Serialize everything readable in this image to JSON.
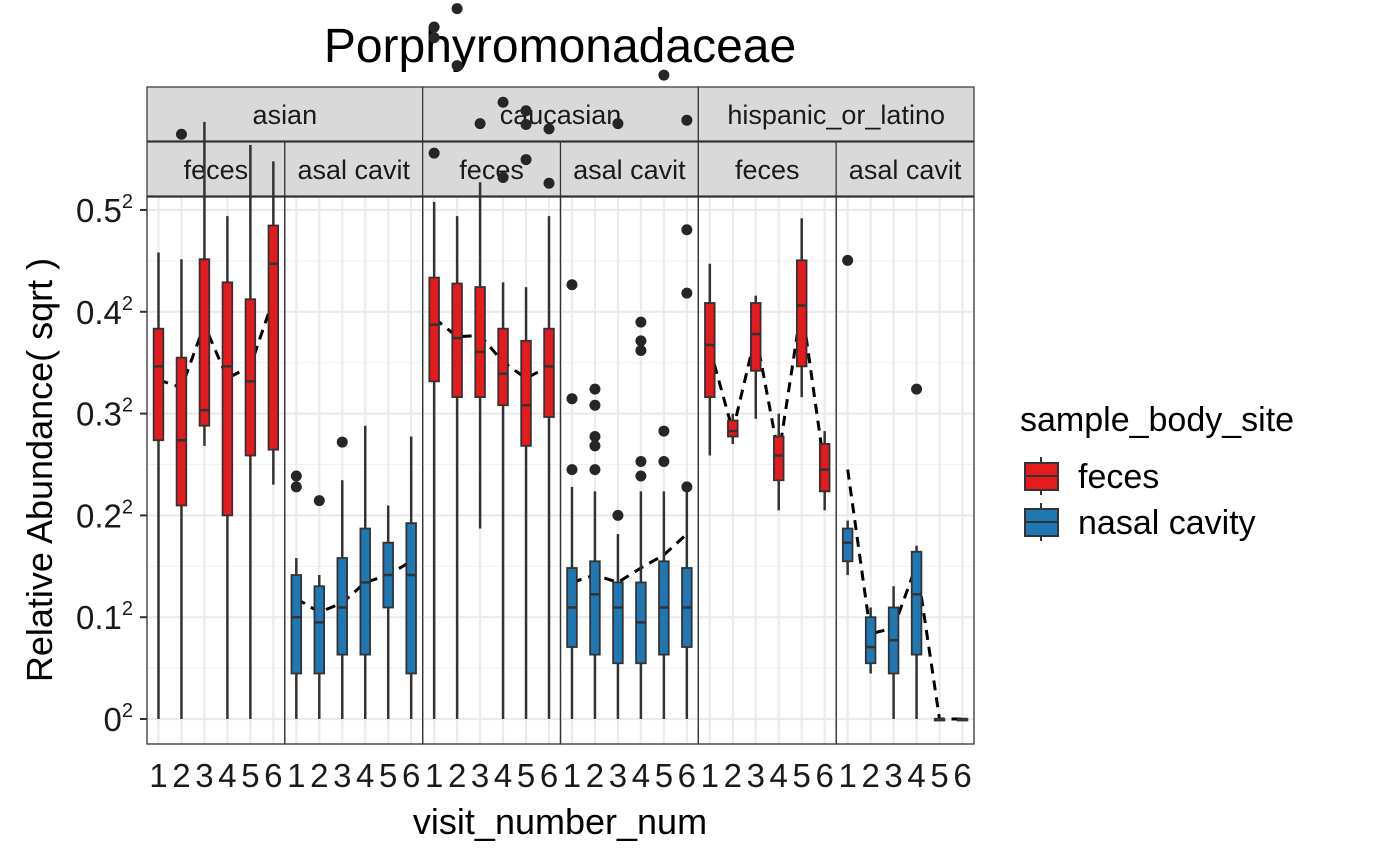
{
  "chart_data": {
    "type": "box",
    "title": "Porphyromonadaceae",
    "xlabel": "visit_number_num",
    "ylabel": "Relative Abundance( sqrt )",
    "y_scale": "sqrt",
    "ylim": [
      0,
      0.25
    ],
    "y_ticks": [
      {
        "base": "0",
        "value": 0
      },
      {
        "base": "0.1",
        "value": 0.01
      },
      {
        "base": "0.2",
        "value": 0.04
      },
      {
        "base": "0.3",
        "value": 0.09
      },
      {
        "base": "0.4",
        "value": 0.16
      },
      {
        "base": "0.5",
        "value": 0.25
      }
    ],
    "y_tick_exponent": "2",
    "x_categories": [
      "1",
      "2",
      "3",
      "4",
      "5",
      "6"
    ],
    "grid": true,
    "legend": {
      "title": "sample_body_site",
      "position": "right",
      "entries": [
        {
          "label": "feces",
          "color": "#e41a1c"
        },
        {
          "label": "nasal cavity",
          "color": "#1f78b4"
        }
      ]
    },
    "facet_groups": [
      {
        "label": "asian",
        "panels": [
          {
            "site_label": "feces",
            "site": "feces",
            "boxes": [
              {
                "x": 1,
                "lo": 0.0,
                "q1": 0.075,
                "med": 0.12,
                "q3": 0.147,
                "hi": 0.21
              },
              {
                "x": 2,
                "lo": 0.0,
                "q1": 0.044,
                "med": 0.075,
                "q3": 0.126,
                "hi": 0.204
              },
              {
                "x": 3,
                "lo": 0.072,
                "q1": 0.083,
                "med": 0.092,
                "q3": 0.204,
                "hi": 0.344
              },
              {
                "x": 4,
                "lo": 0.0,
                "q1": 0.04,
                "med": 0.12,
                "q3": 0.184,
                "hi": 0.244
              },
              {
                "x": 5,
                "lo": 0.0,
                "q1": 0.067,
                "med": 0.11,
                "q3": 0.17,
                "hi": 0.318
              },
              {
                "x": 6,
                "lo": 0.053,
                "q1": 0.07,
                "med": 0.2,
                "q3": 0.235,
                "hi": 0.3
              }
            ],
            "outliers": [
              {
                "x": 2,
                "y": 0.33
              }
            ],
            "mean_line": [
              0.111,
              0.106,
              0.15,
              0.112,
              0.12,
              0.17
            ]
          },
          {
            "site_label": "asal cavit",
            "site": "nasal cavity",
            "boxes": [
              {
                "x": 1,
                "lo": 0.0,
                "q1": 0.002,
                "med": 0.01,
                "q3": 0.02,
                "hi": 0.025
              },
              {
                "x": 2,
                "lo": 0.0,
                "q1": 0.002,
                "med": 0.009,
                "q3": 0.017,
                "hi": 0.02
              },
              {
                "x": 3,
                "lo": 0.0,
                "q1": 0.004,
                "med": 0.012,
                "q3": 0.025,
                "hi": 0.055
              },
              {
                "x": 4,
                "lo": 0.0,
                "q1": 0.004,
                "med": 0.018,
                "q3": 0.035,
                "hi": 0.083
              },
              {
                "x": 5,
                "lo": 0.0,
                "q1": 0.012,
                "med": 0.02,
                "q3": 0.03,
                "hi": 0.044
              },
              {
                "x": 6,
                "lo": 0.0,
                "q1": 0.002,
                "med": 0.02,
                "q3": 0.037,
                "hi": 0.077
              }
            ],
            "outliers": [
              {
                "x": 1,
                "y": 0.057
              },
              {
                "x": 1,
                "y": 0.052
              },
              {
                "x": 2,
                "y": 0.046
              },
              {
                "x": 3,
                "y": 0.074
              }
            ],
            "mean_line": [
              0.014,
              0.011,
              0.013,
              0.018,
              0.02,
              0.024
            ]
          }
        ]
      },
      {
        "label": "caucasian",
        "panels": [
          {
            "site_label": "feces",
            "site": "feces",
            "boxes": [
              {
                "x": 1,
                "lo": 0.0,
                "q1": 0.11,
                "med": 0.15,
                "q3": 0.188,
                "hi": 0.258
              },
              {
                "x": 2,
                "lo": 0.0,
                "q1": 0.1,
                "med": 0.14,
                "q3": 0.183,
                "hi": 0.244
              },
              {
                "x": 3,
                "lo": 0.035,
                "q1": 0.1,
                "med": 0.13,
                "q3": 0.18,
                "hi": 0.278
              },
              {
                "x": 4,
                "lo": 0.0,
                "q1": 0.095,
                "med": 0.115,
                "q3": 0.147,
                "hi": 0.184
              },
              {
                "x": 5,
                "lo": 0.0,
                "q1": 0.072,
                "med": 0.095,
                "q3": 0.138,
                "hi": 0.18
              },
              {
                "x": 6,
                "lo": 0.0,
                "q1": 0.088,
                "med": 0.12,
                "q3": 0.147,
                "hi": 0.244
              }
            ],
            "outliers": [
              {
                "x": 1,
                "y": 0.462
              },
              {
                "x": 1,
                "y": 0.448
              },
              {
                "x": 1,
                "y": 0.309
              },
              {
                "x": 2,
                "y": 0.487
              },
              {
                "x": 2,
                "y": 0.412
              },
              {
                "x": 3,
                "y": 0.342
              },
              {
                "x": 4,
                "y": 0.367
              },
              {
                "x": 4,
                "y": 0.283
              },
              {
                "x": 5,
                "y": 0.357
              },
              {
                "x": 5,
                "y": 0.341
              },
              {
                "x": 5,
                "y": 0.302
              },
              {
                "x": 6,
                "y": 0.336
              },
              {
                "x": 6,
                "y": 0.277
              }
            ],
            "mean_line": [
              0.155,
              0.141,
              0.142,
              0.123,
              0.112,
              0.12
            ]
          },
          {
            "site_label": "asal cavit",
            "site": "nasal cavity",
            "boxes": [
              {
                "x": 1,
                "lo": 0.0,
                "q1": 0.005,
                "med": 0.012,
                "q3": 0.022,
                "hi": 0.052
              },
              {
                "x": 2,
                "lo": 0.0,
                "q1": 0.004,
                "med": 0.015,
                "q3": 0.024,
                "hi": 0.05
              },
              {
                "x": 3,
                "lo": 0.0,
                "q1": 0.003,
                "med": 0.012,
                "q3": 0.018,
                "hi": 0.033
              },
              {
                "x": 4,
                "lo": 0.0,
                "q1": 0.003,
                "med": 0.009,
                "q3": 0.018,
                "hi": 0.05
              },
              {
                "x": 5,
                "lo": 0.0,
                "q1": 0.004,
                "med": 0.012,
                "q3": 0.024,
                "hi": 0.05
              },
              {
                "x": 6,
                "lo": 0.0,
                "q1": 0.005,
                "med": 0.012,
                "q3": 0.022,
                "hi": 0.05
              }
            ],
            "outliers": [
              {
                "x": 1,
                "y": 0.182
              },
              {
                "x": 1,
                "y": 0.099
              },
              {
                "x": 1,
                "y": 0.06
              },
              {
                "x": 2,
                "y": 0.105
              },
              {
                "x": 2,
                "y": 0.095
              },
              {
                "x": 2,
                "y": 0.077
              },
              {
                "x": 2,
                "y": 0.072
              },
              {
                "x": 2,
                "y": 0.06
              },
              {
                "x": 3,
                "y": 0.342
              },
              {
                "x": 3,
                "y": 0.04
              },
              {
                "x": 4,
                "y": 0.152
              },
              {
                "x": 4,
                "y": 0.138
              },
              {
                "x": 4,
                "y": 0.131
              },
              {
                "x": 4,
                "y": 0.064
              },
              {
                "x": 4,
                "y": 0.057
              },
              {
                "x": 5,
                "y": 0.4
              },
              {
                "x": 5,
                "y": 0.08
              },
              {
                "x": 5,
                "y": 0.064
              },
              {
                "x": 6,
                "y": 0.346
              },
              {
                "x": 6,
                "y": 0.231
              },
              {
                "x": 6,
                "y": 0.175
              },
              {
                "x": 6,
                "y": 0.052
              }
            ],
            "mean_line": [
              0.018,
              0.02,
              0.018,
              0.022,
              0.026,
              0.033
            ]
          }
        ]
      },
      {
        "label": "hispanic_or_latino",
        "panels": [
          {
            "site_label": "feces",
            "site": "feces",
            "boxes": [
              {
                "x": 1,
                "lo": 0.067,
                "q1": 0.1,
                "med": 0.135,
                "q3": 0.167,
                "hi": 0.2
              },
              {
                "x": 2,
                "lo": 0.073,
                "q1": 0.077,
                "med": 0.08,
                "q3": 0.086,
                "hi": 0.09
              },
              {
                "x": 3,
                "lo": 0.087,
                "q1": 0.117,
                "med": 0.143,
                "q3": 0.167,
                "hi": 0.173
              },
              {
                "x": 4,
                "lo": 0.042,
                "q1": 0.055,
                "med": 0.067,
                "q3": 0.077,
                "hi": 0.09
              },
              {
                "x": 5,
                "lo": 0.1,
                "q1": 0.12,
                "med": 0.165,
                "q3": 0.203,
                "hi": 0.242
              },
              {
                "x": 6,
                "lo": 0.042,
                "q1": 0.05,
                "med": 0.06,
                "q3": 0.073,
                "hi": 0.08
              }
            ],
            "outliers": [],
            "mean_line": [
              0.133,
              0.08,
              0.143,
              0.067,
              0.165,
              0.06
            ]
          },
          {
            "site_label": "asal cavit",
            "site": "nasal cavity",
            "boxes": [
              {
                "x": 1,
                "lo": 0.02,
                "q1": 0.024,
                "med": 0.03,
                "q3": 0.035,
                "hi": 0.038
              },
              {
                "x": 2,
                "lo": 0.002,
                "q1": 0.003,
                "med": 0.005,
                "q3": 0.01,
                "hi": 0.012
              },
              {
                "x": 3,
                "lo": 0.0,
                "q1": 0.002,
                "med": 0.006,
                "q3": 0.012,
                "hi": 0.017
              },
              {
                "x": 4,
                "lo": 0.0,
                "q1": 0.004,
                "med": 0.015,
                "q3": 0.027,
                "hi": 0.029
              },
              {
                "x": 5,
                "lo": 0.0,
                "q1": 0.0,
                "med": 0.0,
                "q3": 0.0,
                "hi": 0.0
              },
              {
                "x": 6,
                "lo": 0.0,
                "q1": 0.0,
                "med": 0.0,
                "q3": 0.0,
                "hi": 0.0
              }
            ],
            "outliers": [
              {
                "x": 1,
                "y": 0.203
              },
              {
                "x": 4,
                "y": 0.105
              }
            ],
            "mean_line": [
              0.06,
              0.007,
              0.008,
              0.023,
              0.0,
              0.0
            ]
          }
        ]
      }
    ]
  }
}
